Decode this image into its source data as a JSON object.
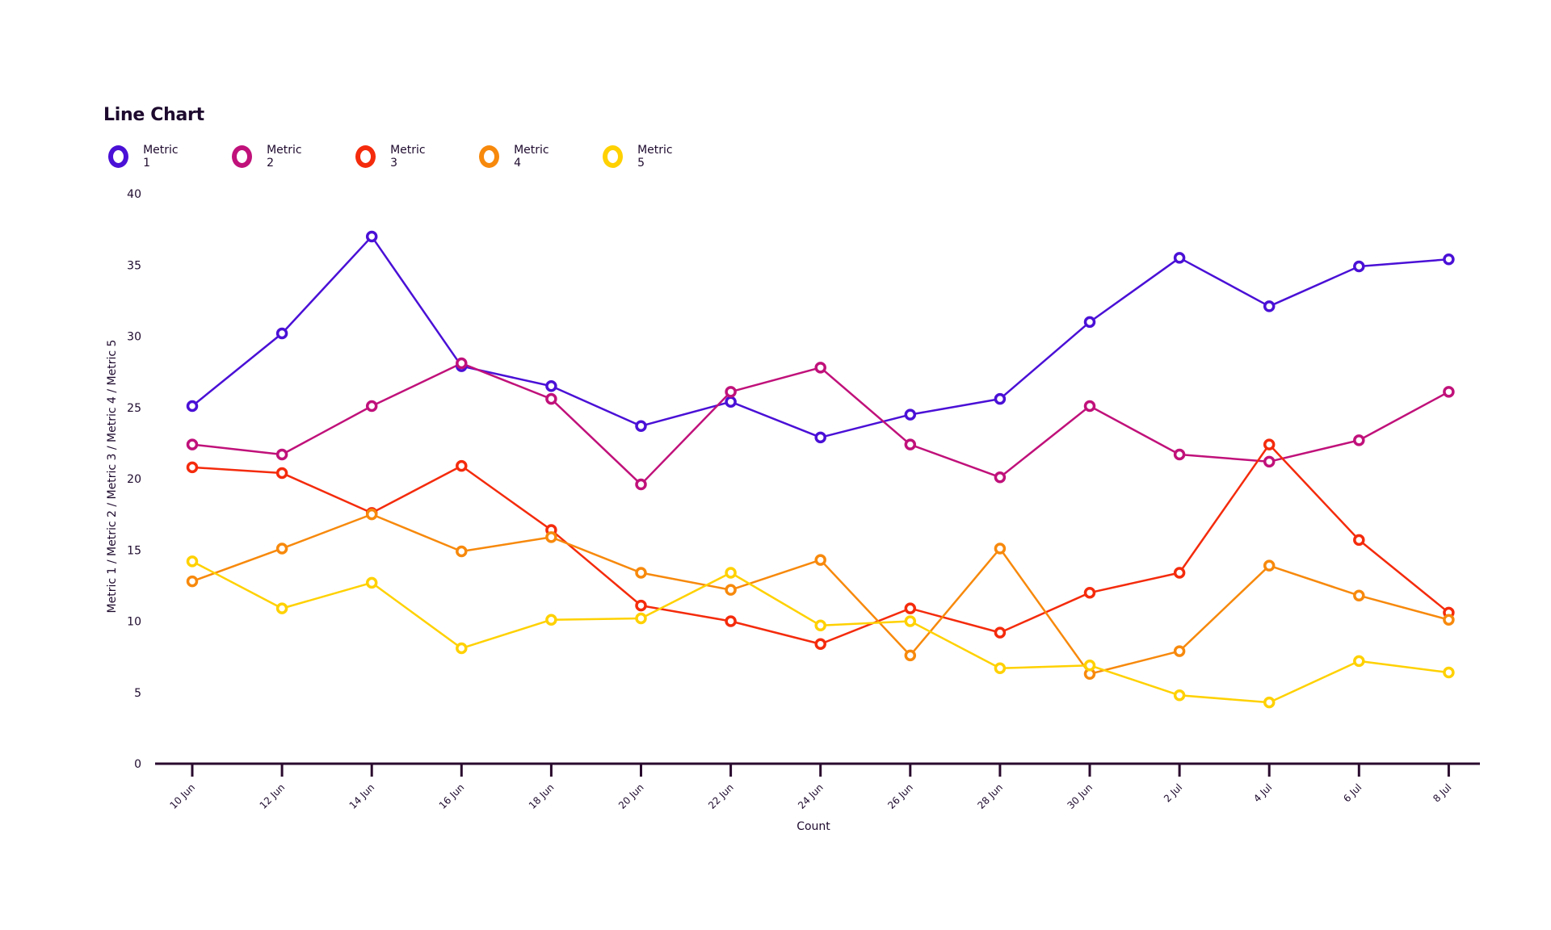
{
  "chart_data": {
    "type": "line",
    "title": "Line Chart",
    "xlabel": "Count",
    "ylabel": "Metric 1 / Metric 2 / Metric 3 / Metric 4 / Metric 5",
    "ylim": [
      0,
      40
    ],
    "yticks": [
      0,
      5,
      10,
      15,
      20,
      25,
      30,
      35,
      40
    ],
    "grid": false,
    "legend_position": "top-left",
    "categories": [
      "10 Jun",
      "12 Jun",
      "14 Jun",
      "16 Jun",
      "18 Jun",
      "20 Jun",
      "22 Jun",
      "24 Jun",
      "26 Jun",
      "28 Jun",
      "30 Jun",
      "2 Jul",
      "4 Jul",
      "6 Jul",
      "8 Jul"
    ],
    "series": [
      {
        "name": "Metric 1",
        "color": "#4a10d6",
        "values": [
          25.1,
          30.2,
          37.0,
          27.9,
          26.5,
          23.7,
          25.4,
          22.9,
          24.5,
          25.6,
          31.0,
          35.5,
          32.1,
          34.9,
          35.4
        ]
      },
      {
        "name": "Metric 2",
        "color": "#c0117a",
        "values": [
          22.4,
          21.7,
          25.1,
          28.1,
          25.6,
          19.6,
          26.1,
          27.8,
          22.4,
          20.1,
          25.1,
          21.7,
          21.2,
          22.7,
          26.1
        ]
      },
      {
        "name": "Metric 3",
        "color": "#f42b0c",
        "values": [
          20.8,
          20.4,
          17.6,
          20.9,
          16.4,
          11.1,
          10.0,
          8.4,
          10.9,
          9.2,
          12.0,
          13.4,
          22.4,
          15.7,
          10.6
        ]
      },
      {
        "name": "Metric 4",
        "color": "#f7890c",
        "values": [
          12.8,
          15.1,
          17.5,
          14.9,
          15.9,
          13.4,
          12.2,
          14.3,
          7.6,
          15.1,
          6.3,
          7.9,
          13.9,
          11.8,
          10.1
        ]
      },
      {
        "name": "Metric 5",
        "color": "#ffd100",
        "values": [
          14.2,
          10.9,
          12.7,
          8.1,
          10.1,
          10.2,
          13.4,
          9.7,
          10.0,
          6.7,
          6.9,
          4.8,
          4.3,
          7.2,
          6.4
        ]
      }
    ]
  }
}
